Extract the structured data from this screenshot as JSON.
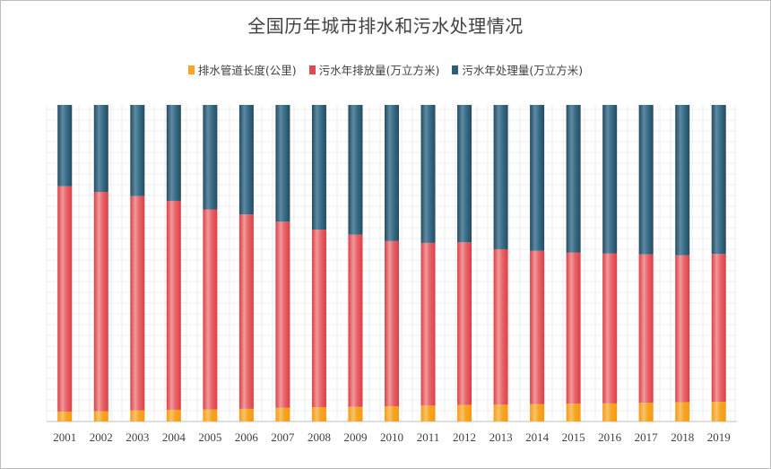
{
  "chart_data": {
    "type": "bar",
    "stacked": "percent",
    "title": "全国历年城市排水和污水处理情况",
    "xlabel": "",
    "ylabel": "",
    "ylim": [
      0,
      1
    ],
    "grid": true,
    "legend_position": "top",
    "categories": [
      "2001",
      "2002",
      "2003",
      "2004",
      "2005",
      "2006",
      "2007",
      "2008",
      "2009",
      "2010",
      "2011",
      "2012",
      "2013",
      "2014",
      "2015",
      "2016",
      "2017",
      "2018",
      "2019"
    ],
    "series": [
      {
        "name": "排水管道长度(公里)",
        "color": "#f5a623",
        "values": [
          0.031,
          0.032,
          0.035,
          0.037,
          0.038,
          0.04,
          0.043,
          0.045,
          0.046,
          0.048,
          0.05,
          0.052,
          0.053,
          0.055,
          0.056,
          0.057,
          0.059,
          0.061,
          0.062
        ]
      },
      {
        "name": "污水年排放量(万立方米)",
        "color": "#e14b50",
        "values": [
          0.712,
          0.693,
          0.677,
          0.66,
          0.632,
          0.614,
          0.588,
          0.561,
          0.544,
          0.522,
          0.514,
          0.514,
          0.491,
          0.484,
          0.478,
          0.474,
          0.469,
          0.464,
          0.467
        ]
      },
      {
        "name": "污水年处理量(万立方米)",
        "color": "#2e5f7a",
        "values": [
          0.257,
          0.275,
          0.288,
          0.303,
          0.33,
          0.346,
          0.369,
          0.394,
          0.41,
          0.43,
          0.436,
          0.434,
          0.456,
          0.461,
          0.466,
          0.469,
          0.472,
          0.475,
          0.471
        ]
      }
    ]
  }
}
